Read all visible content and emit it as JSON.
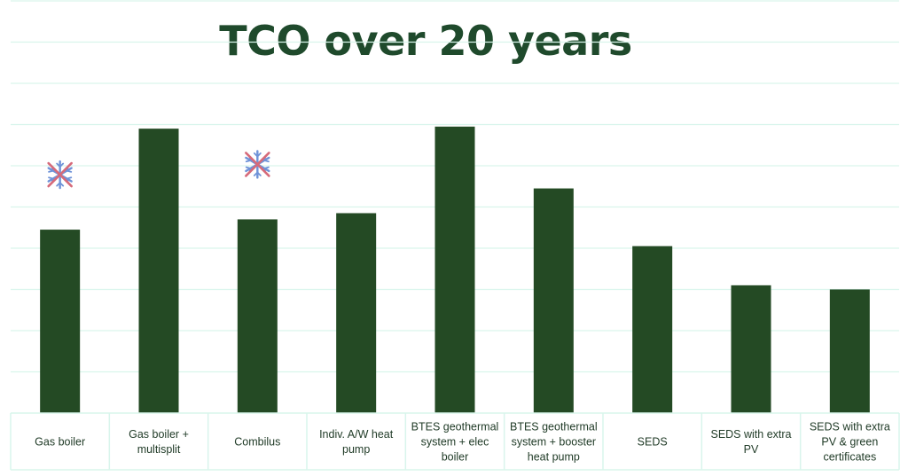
{
  "colors": {
    "bar": "#244a24",
    "title": "#1f4a2c",
    "grid": "#d9f5ec",
    "label": "#1f3a26",
    "snowflake": "#6f93d8",
    "cross": "#d66a7a"
  },
  "chart_data": {
    "type": "bar",
    "title": "TCO over 20 years",
    "xlabel": "",
    "ylabel": "",
    "ylim": [
      0,
      10
    ],
    "grid": true,
    "legend": "none",
    "categories": [
      "Gas boiler",
      "Gas boiler + multisplit",
      "Combilus",
      "Indiv. A/W heat pump",
      "BTES geothermal system + elec boiler",
      "BTES geothermal system + booster heat pump",
      "SEDS",
      "SEDS with extra PV",
      "SEDS with extra PV & green certificates"
    ],
    "category_lines": [
      [
        "Gas boiler"
      ],
      [
        "Gas boiler +",
        "multisplit"
      ],
      [
        "Combilus"
      ],
      [
        "Indiv. A/W heat",
        "pump"
      ],
      [
        "BTES geothermal",
        "system + elec",
        "boiler"
      ],
      [
        "BTES geothermal",
        "system + booster",
        "heat pump"
      ],
      [
        "SEDS"
      ],
      [
        "SEDS with extra",
        "PV"
      ],
      [
        "SEDS with extra",
        "PV & green",
        "certificates"
      ]
    ],
    "values": [
      4.45,
      6.9,
      4.7,
      4.85,
      6.95,
      5.45,
      4.05,
      3.1,
      3.0
    ],
    "annotations": [
      {
        "category": "Gas boiler",
        "icon": "crossed-out-snowflake-icon"
      },
      {
        "category": "Combilus",
        "icon": "crossed-out-snowflake-icon"
      }
    ]
  }
}
